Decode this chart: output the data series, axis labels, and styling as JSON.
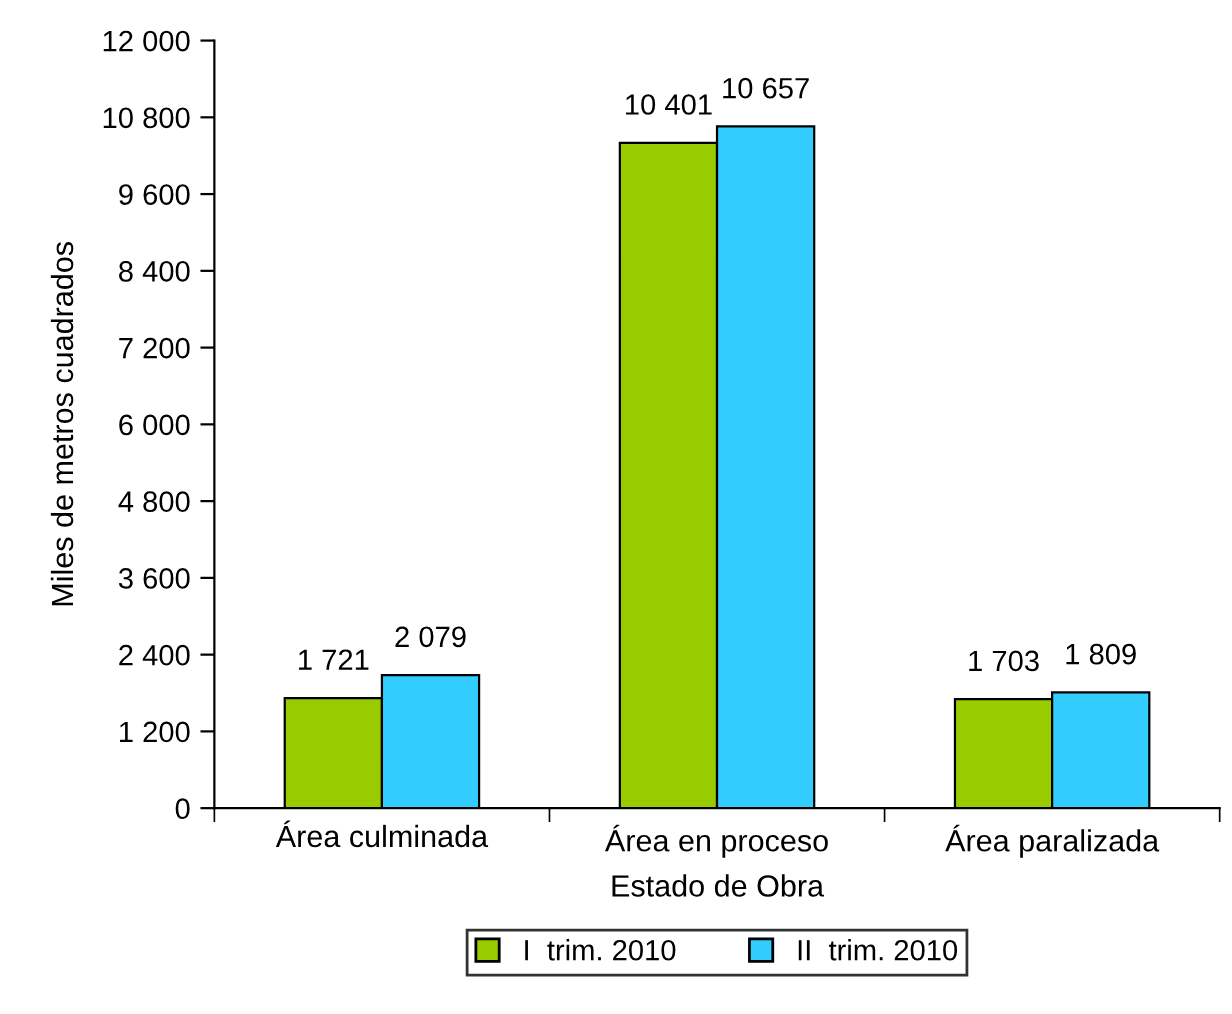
{
  "chart_data": {
    "type": "bar",
    "xlabel": "Estado de Obra",
    "ylabel": "Miles de metros cuadrados",
    "categories": [
      "Área culminada",
      "Área en proceso",
      "Área paralizada"
    ],
    "series": [
      {
        "name": "I  trim. 2010",
        "color": "#99cc00",
        "values": [
          1721,
          10401,
          1703
        ],
        "value_labels": [
          "1 721",
          "10 401",
          "1 703"
        ]
      },
      {
        "name": "II  trim. 2010",
        "color": "#33ccff",
        "values": [
          2079,
          10657,
          1809
        ],
        "value_labels": [
          "2 079",
          "10 657",
          "1 809"
        ]
      }
    ],
    "ylim": [
      0,
      12000
    ],
    "yticks": [
      0,
      {
        "value": 1200,
        "label": "1 200"
      },
      {
        "value": 2400,
        "label": "2 400"
      },
      {
        "value": 3600,
        "label": "3 600"
      },
      {
        "value": 4800,
        "label": "4 800"
      },
      {
        "value": 6000,
        "label": "6 000"
      },
      {
        "value": 7200,
        "label": "7 200"
      },
      {
        "value": 8400,
        "label": "8 400"
      },
      {
        "value": 9600,
        "label": "9 600"
      },
      {
        "value": 10800,
        "label": "10 800"
      },
      {
        "value": 12000,
        "label": "12 000"
      }
    ],
    "grid": false,
    "legend": "bottom"
  }
}
